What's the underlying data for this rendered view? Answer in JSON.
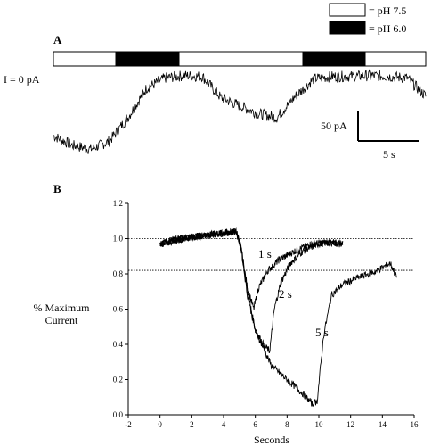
{
  "legend": {
    "items": [
      {
        "label": "= pH 7.5",
        "fill": "#ffffff"
      },
      {
        "label": "= pH 6.0",
        "fill": "#000000"
      }
    ]
  },
  "panel_a": {
    "letter": "A",
    "zero_label": "I = 0 pA",
    "scale_current": "50 pA",
    "scale_time": "5 s",
    "stimulus": [
      "7.5",
      "6.0",
      "7.5",
      "6.0",
      "7.5"
    ]
  },
  "panel_b": {
    "letter": "B",
    "ylabel_line1": "% Maximum",
    "ylabel_line2": "Current",
    "xlabel": "Seconds",
    "curve_labels": [
      "1 s",
      "2 s",
      "5  s"
    ]
  },
  "chart_data": [
    {
      "type": "line",
      "title": "",
      "ylim": [
        -0.15,
        1.0
      ],
      "xlim": [
        0,
        1
      ],
      "series": [
        {
          "x": [
            0.0,
            0.05,
            0.1,
            0.15,
            0.2,
            0.25,
            0.3,
            0.35,
            0.4,
            0.45,
            0.5,
            0.55,
            0.6,
            0.65,
            0.7,
            0.75,
            0.8,
            0.85,
            0.9,
            0.95,
            1.0
          ],
          "values": [
            0.22,
            0.1,
            0.05,
            0.15,
            0.45,
            0.82,
            0.95,
            0.98,
            0.97,
            0.7,
            0.6,
            0.5,
            0.45,
            0.72,
            0.94,
            0.97,
            0.97,
            0.98,
            0.97,
            0.95,
            0.72
          ],
          "noise": 0.07
        }
      ]
    },
    {
      "type": "line",
      "xlabel": "Seconds",
      "ylabel": "% Maximum Current",
      "xlim": [
        -2,
        16
      ],
      "ylim": [
        0.0,
        1.2
      ],
      "xticks": [
        -2,
        0,
        2,
        4,
        6,
        8,
        10,
        12,
        14,
        16
      ],
      "yticks": [
        0.0,
        0.2,
        0.4,
        0.6,
        0.8,
        1.0,
        1.2
      ],
      "ytick_labels": [
        "0.0",
        "0.2",
        "0.4",
        "0.6",
        "0.8",
        "1.0",
        "1.2"
      ],
      "hlines": [
        1.0,
        0.82
      ],
      "series": [
        {
          "name": "1 s",
          "x": [
            0,
            1,
            2,
            3,
            4,
            4.8,
            5.1,
            5.5,
            5.9,
            6.2,
            6.8,
            7.5,
            8.5,
            9.5,
            10.5,
            11.0,
            11.5
          ],
          "values": [
            0.97,
            1.0,
            1.01,
            1.02,
            1.03,
            1.04,
            0.95,
            0.72,
            0.6,
            0.72,
            0.82,
            0.88,
            0.93,
            0.97,
            0.98,
            0.97,
            0.97
          ],
          "noise": 0.02
        },
        {
          "name": "2 s",
          "x": [
            0,
            2,
            4.8,
            5.1,
            5.5,
            6.0,
            6.5,
            6.9,
            7.2,
            7.6,
            8.2,
            9.0,
            10.0,
            11.0,
            11.5
          ],
          "values": [
            0.97,
            1.01,
            1.04,
            0.95,
            0.7,
            0.48,
            0.4,
            0.36,
            0.6,
            0.75,
            0.86,
            0.93,
            0.97,
            0.98,
            0.97
          ],
          "noise": 0.02
        },
        {
          "name": "5  s",
          "x": [
            0,
            2,
            4.8,
            5.1,
            5.5,
            6.0,
            7.0,
            8.0,
            9.0,
            9.6,
            9.9,
            10.3,
            10.8,
            11.5,
            12.5,
            13.5,
            14.5,
            14.9
          ],
          "values": [
            0.97,
            1.01,
            1.04,
            0.95,
            0.68,
            0.48,
            0.28,
            0.2,
            0.12,
            0.06,
            0.08,
            0.45,
            0.68,
            0.74,
            0.78,
            0.81,
            0.86,
            0.78
          ],
          "noise": 0.02
        }
      ]
    }
  ]
}
